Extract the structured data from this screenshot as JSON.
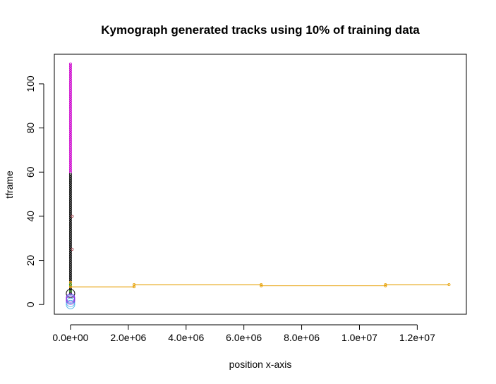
{
  "chart_data": {
    "type": "scatter",
    "title": "Kymograph generated tracks using 10% of training data",
    "xlabel": "position x-axis",
    "ylabel": "tframe",
    "xlim": [
      -560000,
      13700000
    ],
    "ylim": [
      -4.4,
      113.4
    ],
    "x_ticks": [
      0,
      2000000,
      4000000,
      6000000,
      8000000,
      10000000,
      12000000
    ],
    "x_tick_labels": [
      "0.0e+00",
      "2.0e+06",
      "4.0e+06",
      "6.0e+06",
      "8.0e+06",
      "1.0e+07",
      "1.2e+07"
    ],
    "y_ticks": [
      0,
      20,
      40,
      60,
      80,
      100
    ],
    "y_tick_labels": [
      "0",
      "20",
      "40",
      "60",
      "80",
      "100"
    ],
    "grid": false,
    "legend": "none",
    "series": [
      {
        "color": "#cc00cc",
        "type": "track",
        "x": 0,
        "y_from": 60,
        "y_to": 109
      },
      {
        "color": "#000000",
        "type": "track",
        "x": 0,
        "y_from": 5,
        "y_to": 59
      },
      {
        "color": "#000000",
        "type": "large-point",
        "x": 0,
        "y": 5
      },
      {
        "color": "#e69f00",
        "type": "track",
        "x": [
          0,
          0,
          2200000,
          2200000,
          6600000,
          6600000,
          10900000,
          10900000,
          13100000
        ],
        "y": [
          10,
          8,
          8,
          9,
          9,
          8.5,
          8.5,
          9,
          9
        ]
      },
      {
        "color": "#56b4e9",
        "type": "large-point",
        "x": [
          0,
          0,
          0
        ],
        "y": [
          0,
          1,
          2.5
        ]
      },
      {
        "color": "#8a2be2",
        "type": "large-point",
        "x": [
          0,
          0
        ],
        "y": [
          2,
          3
        ]
      },
      {
        "color": "#b5656d",
        "type": "point",
        "x": [
          60000,
          60000,
          60000
        ],
        "y": [
          25,
          40,
          40
        ]
      },
      {
        "color": "#3aa02a",
        "type": "point",
        "x": [
          0,
          0
        ],
        "y": [
          6,
          9
        ]
      }
    ]
  }
}
